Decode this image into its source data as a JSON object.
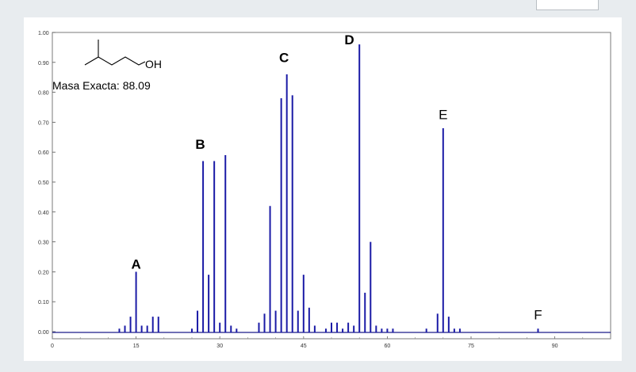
{
  "chart_data": {
    "type": "bar",
    "xlim": [
      0,
      100
    ],
    "ylim": [
      0,
      1.0
    ],
    "x_ticks": [
      {
        "value": 0,
        "label": "0"
      },
      {
        "value": 15,
        "label": "15"
      },
      {
        "value": 30,
        "label": "30"
      },
      {
        "value": 45,
        "label": "45"
      },
      {
        "value": 60,
        "label": "60"
      },
      {
        "value": 75,
        "label": "75"
      },
      {
        "value": 90,
        "label": "90"
      }
    ],
    "y_ticks": [
      {
        "value": 0.0,
        "label": "0.00"
      },
      {
        "value": 0.1,
        "label": "0.10"
      },
      {
        "value": 0.2,
        "label": "0.20"
      },
      {
        "value": 0.3,
        "label": "0.30"
      },
      {
        "value": 0.4,
        "label": "0.40"
      },
      {
        "value": 0.5,
        "label": "0.50"
      },
      {
        "value": 0.6,
        "label": "0.60"
      },
      {
        "value": 0.7,
        "label": "0.70"
      },
      {
        "value": 0.8,
        "label": "0.80"
      },
      {
        "value": 0.9,
        "label": "0.90"
      },
      {
        "value": 1.0,
        "label": "1.00"
      }
    ],
    "bar_color": "#1a1aa6",
    "peaks": [
      {
        "x": 12,
        "y": 0.01
      },
      {
        "x": 13,
        "y": 0.02
      },
      {
        "x": 14,
        "y": 0.05
      },
      {
        "x": 15,
        "y": 0.2
      },
      {
        "x": 16,
        "y": 0.02
      },
      {
        "x": 17,
        "y": 0.02
      },
      {
        "x": 18,
        "y": 0.05
      },
      {
        "x": 19,
        "y": 0.05
      },
      {
        "x": 25,
        "y": 0.01
      },
      {
        "x": 26,
        "y": 0.07
      },
      {
        "x": 27,
        "y": 0.57
      },
      {
        "x": 28,
        "y": 0.19
      },
      {
        "x": 29,
        "y": 0.57
      },
      {
        "x": 30,
        "y": 0.03
      },
      {
        "x": 31,
        "y": 0.59
      },
      {
        "x": 32,
        "y": 0.02
      },
      {
        "x": 33,
        "y": 0.01
      },
      {
        "x": 37,
        "y": 0.03
      },
      {
        "x": 38,
        "y": 0.06
      },
      {
        "x": 39,
        "y": 0.42
      },
      {
        "x": 40,
        "y": 0.07
      },
      {
        "x": 41,
        "y": 0.78
      },
      {
        "x": 42,
        "y": 0.86
      },
      {
        "x": 43,
        "y": 0.79
      },
      {
        "x": 44,
        "y": 0.07
      },
      {
        "x": 45,
        "y": 0.19
      },
      {
        "x": 46,
        "y": 0.08
      },
      {
        "x": 47,
        "y": 0.02
      },
      {
        "x": 49,
        "y": 0.01
      },
      {
        "x": 50,
        "y": 0.03
      },
      {
        "x": 51,
        "y": 0.03
      },
      {
        "x": 52,
        "y": 0.01
      },
      {
        "x": 53,
        "y": 0.03
      },
      {
        "x": 54,
        "y": 0.02
      },
      {
        "x": 55,
        "y": 0.96
      },
      {
        "x": 56,
        "y": 0.13
      },
      {
        "x": 57,
        "y": 0.3
      },
      {
        "x": 58,
        "y": 0.02
      },
      {
        "x": 59,
        "y": 0.01
      },
      {
        "x": 60,
        "y": 0.01
      },
      {
        "x": 61,
        "y": 0.01
      },
      {
        "x": 67,
        "y": 0.01
      },
      {
        "x": 69,
        "y": 0.06
      },
      {
        "x": 70,
        "y": 0.68
      },
      {
        "x": 71,
        "y": 0.05
      },
      {
        "x": 72,
        "y": 0.01
      },
      {
        "x": 73,
        "y": 0.01
      },
      {
        "x": 87,
        "y": 0.01
      }
    ],
    "annotations": [
      {
        "text": "A",
        "x": 15,
        "y": 0.2,
        "bold": true
      },
      {
        "text": "B",
        "x": 26.5,
        "y": 0.6,
        "bold": true
      },
      {
        "text": "C",
        "x": 41.5,
        "y": 0.89,
        "bold": true
      },
      {
        "text": "D",
        "x": 53.2,
        "y": 0.95,
        "bold": true
      },
      {
        "text": "E",
        "x": 70,
        "y": 0.7,
        "bold": false
      },
      {
        "text": "F",
        "x": 87,
        "y": 0.03,
        "bold": false
      }
    ],
    "molecule": {
      "formula_label": "OH",
      "mass_text": "Masa Exacta: 88.09"
    }
  }
}
